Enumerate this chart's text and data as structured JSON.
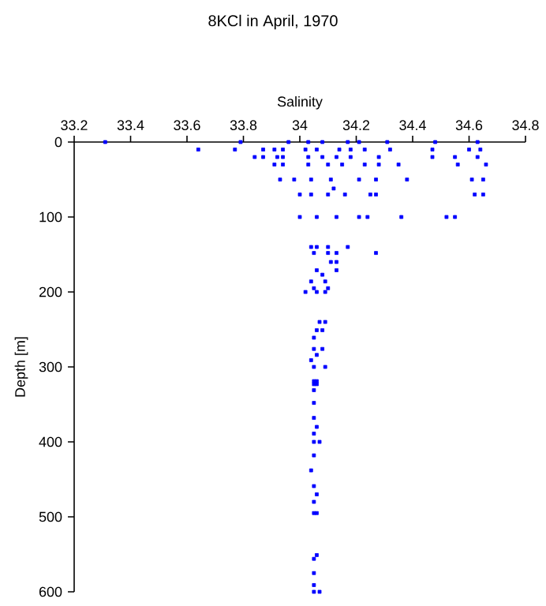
{
  "chart_data": {
    "type": "scatter",
    "title": "8KCl in April, 1970",
    "xlabel": "Salinity",
    "ylabel": "Depth [m]",
    "xlim": [
      33.2,
      34.8
    ],
    "xticks": [
      33.2,
      33.4,
      33.6,
      33.8,
      34,
      34.2,
      34.4,
      34.6,
      34.8
    ],
    "ylim": [
      600,
      0
    ],
    "yticks": [
      0,
      100,
      200,
      300,
      400,
      500,
      600
    ],
    "color": "#0000ff",
    "marker": "square",
    "grid": false,
    "x": [
      33.31,
      33.79,
      33.96,
      34.03,
      34.08,
      34.17,
      34.21,
      34.31,
      34.48,
      34.63,
      33.64,
      33.77,
      33.87,
      33.91,
      33.94,
      34.02,
      34.06,
      34.14,
      34.18,
      34.23,
      34.32,
      34.47,
      34.6,
      34.64,
      33.84,
      33.87,
      33.92,
      33.94,
      34.03,
      34.08,
      34.13,
      34.18,
      34.28,
      34.47,
      34.55,
      34.63,
      33.91,
      33.94,
      34.03,
      34.1,
      34.15,
      34.23,
      34.28,
      34.35,
      34.56,
      34.66,
      33.93,
      33.98,
      34.04,
      34.11,
      34.21,
      34.27,
      34.38,
      34.61,
      34.65,
      34.12,
      34,
      34.04,
      34.1,
      34.16,
      34.25,
      34.27,
      34.62,
      34.65,
      34,
      34.06,
      34.13,
      34.21,
      34.24,
      34.36,
      34.52,
      34.55,
      34.04,
      34.06,
      34.1,
      34.17,
      34.05,
      34.1,
      34.13,
      34.27,
      34.11,
      34.13,
      34.06,
      34.13,
      34.08,
      34.04,
      34.09,
      34.05,
      34.1,
      34.02,
      34.06,
      34.09,
      34.07,
      34.09,
      34.06,
      34.08,
      34.05,
      34.05,
      34.08,
      34.06,
      34.04,
      34.05,
      34.09,
      34.05,
      34.06,
      34.05,
      34.06,
      34.05,
      34.05,
      34.05,
      34.06,
      34.05,
      34.05,
      34.07,
      34.05,
      34.04,
      34.05,
      34.06,
      34.05,
      34.05,
      34.06,
      34.06,
      34.05,
      34.05,
      34.05,
      34.05,
      34.07
    ],
    "values": [
      0,
      0,
      0,
      0,
      0,
      0,
      0,
      0,
      0,
      0,
      10,
      10,
      10,
      10,
      10,
      10,
      10,
      10,
      10,
      10,
      10,
      10,
      10,
      10,
      20,
      20,
      20,
      20,
      20,
      20,
      20,
      20,
      20,
      20,
      20,
      20,
      30,
      30,
      30,
      30,
      30,
      30,
      30,
      30,
      30,
      30,
      50,
      50,
      50,
      50,
      50,
      50,
      50,
      50,
      50,
      62,
      70,
      70,
      70,
      70,
      70,
      70,
      70,
      70,
      100,
      100,
      100,
      100,
      100,
      100,
      100,
      100,
      140,
      140,
      140,
      140,
      148,
      148,
      148,
      148,
      160,
      160,
      171,
      171,
      177,
      186,
      186,
      195,
      195,
      200,
      200,
      200,
      240,
      240,
      251,
      251,
      261,
      276,
      276,
      284,
      291,
      300,
      300,
      319,
      319,
      323,
      323,
      331,
      348,
      368,
      380,
      389,
      400,
      400,
      418,
      438,
      459,
      470,
      480,
      495,
      495,
      551,
      556,
      575,
      591,
      600,
      600
    ]
  }
}
